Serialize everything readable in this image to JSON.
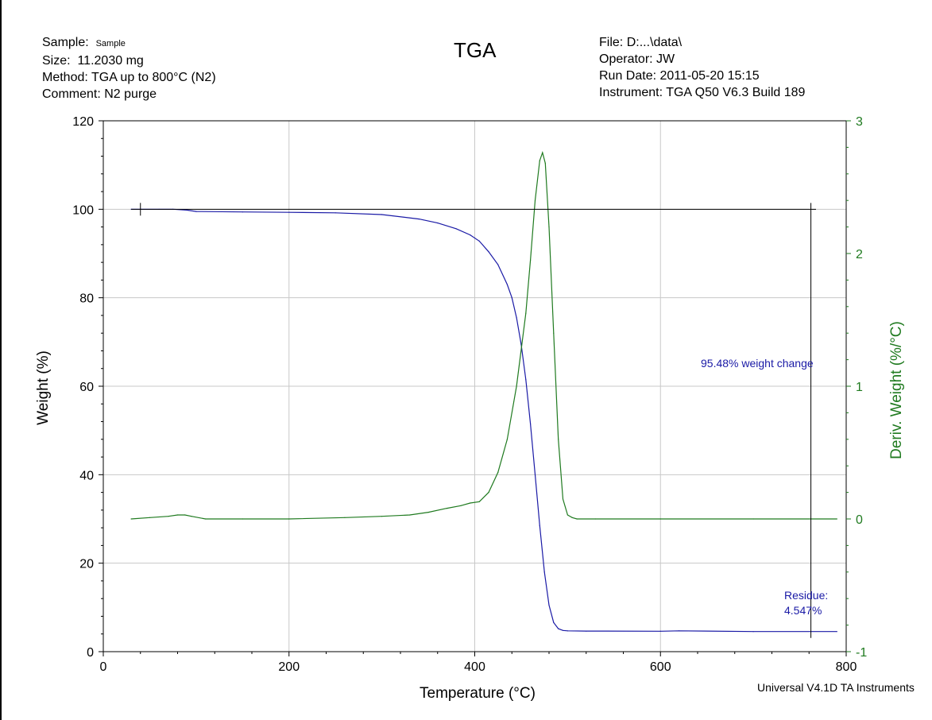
{
  "header": {
    "sample_label": "Sample:",
    "sample_value": "Sample",
    "size_label": "Size:",
    "size_value": "11.2030 mg",
    "method_label": "Method:",
    "method_value": "TGA up to 800°C (N2)",
    "comment_label": "Comment:",
    "comment_value": "N2 purge",
    "title": "TGA",
    "file_label": "File:",
    "file_value": "D:...\\data\\",
    "operator_label": "Operator:",
    "operator_value": "JW",
    "run_date_label": "Run Date:",
    "run_date_value": "2011-05-20 15:15",
    "instrument_label": "Instrument:",
    "instrument_value": "TGA Q50 V6.3 Build 189"
  },
  "footer": "Universal V4.1D TA Instruments",
  "chart_data": {
    "type": "line",
    "xlabel": "Temperature (°C)",
    "ylabel": "Weight (%)",
    "y2label": "Deriv. Weight (%/°C)",
    "xlim": [
      0,
      800
    ],
    "ylim": [
      0,
      120
    ],
    "y2lim": [
      -1,
      3
    ],
    "x_ticks": [
      "0",
      "200",
      "400",
      "600",
      "800"
    ],
    "y_ticks": [
      "0",
      "20",
      "40",
      "60",
      "80",
      "100",
      "120"
    ],
    "y2_ticks": [
      "-1",
      "0",
      "1",
      "2",
      "3"
    ],
    "grid": true,
    "colors": {
      "weight": "#1a1aa6",
      "deriv": "#1f7a1f",
      "grid": "#c8c8c8"
    },
    "series": [
      {
        "axis": "left",
        "x": [
          30,
          60,
          75,
          90,
          100,
          150,
          200,
          250,
          300,
          340,
          360,
          380,
          395,
          405,
          415,
          425,
          435,
          440,
          445,
          450,
          455,
          460,
          465,
          470,
          475,
          480,
          485,
          490,
          495,
          500,
          520,
          600,
          620,
          700,
          790
        ],
        "y": [
          100,
          100,
          100,
          99.8,
          99.5,
          99.4,
          99.3,
          99.2,
          98.8,
          97.8,
          96.9,
          95.6,
          94.2,
          92.8,
          90.4,
          87.5,
          83.0,
          80.0,
          75.5,
          69.5,
          61.5,
          51.5,
          40.0,
          28.5,
          18.0,
          10.5,
          6.6,
          5.2,
          4.8,
          4.7,
          4.65,
          4.62,
          4.7,
          4.55,
          4.547
        ]
      },
      {
        "axis": "right",
        "x": [
          30,
          50,
          70,
          80,
          88,
          95,
          110,
          150,
          200,
          260,
          300,
          330,
          350,
          370,
          385,
          395,
          405,
          415,
          425,
          435,
          445,
          455,
          460,
          465,
          470,
          473,
          476,
          480,
          485,
          490,
          495,
          500,
          505,
          510,
          530,
          600,
          700,
          790
        ],
        "y": [
          0,
          0.01,
          0.02,
          0.03,
          0.03,
          0.02,
          0,
          0,
          0,
          0.01,
          0.02,
          0.03,
          0.05,
          0.08,
          0.1,
          0.12,
          0.13,
          0.2,
          0.35,
          0.6,
          1.0,
          1.55,
          1.95,
          2.4,
          2.7,
          2.76,
          2.68,
          2.2,
          1.4,
          0.6,
          0.15,
          0.03,
          0.01,
          0,
          0,
          0,
          0,
          0
        ]
      }
    ],
    "annotations": {
      "weight_change": "95.48% weight change",
      "residue_label": "Residue:",
      "residue_value": "4.547%"
    }
  }
}
